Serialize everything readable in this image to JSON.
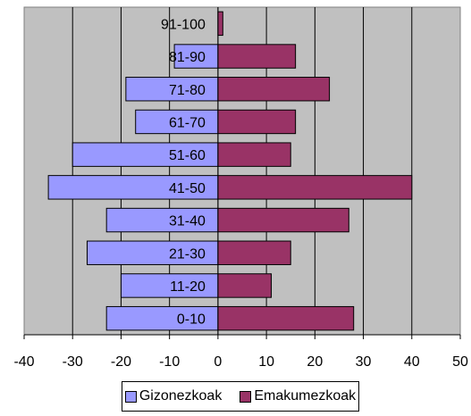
{
  "chart_data": {
    "type": "bar",
    "orientation": "horizontal",
    "categories": [
      "0-10",
      "11-20",
      "21-30",
      "31-40",
      "41-50",
      "51-60",
      "61-70",
      "71-80",
      "81-90",
      "91-100"
    ],
    "series": [
      {
        "name": "Gizonezkoak",
        "values": [
          -23,
          -20,
          -27,
          -23,
          -35,
          -30,
          -17,
          -19,
          -9,
          0
        ],
        "color": "#9999ff"
      },
      {
        "name": "Emakumezkoak",
        "values": [
          28,
          11,
          15,
          27,
          40,
          15,
          16,
          23,
          16,
          1
        ],
        "color": "#993366"
      }
    ],
    "xlim": [
      -40,
      50
    ],
    "xticks": [
      -40,
      -30,
      -20,
      -10,
      0,
      10,
      20,
      30,
      40,
      50
    ],
    "grid": true,
    "plot_background": "#c0c0c0",
    "legend_position": "bottom"
  }
}
